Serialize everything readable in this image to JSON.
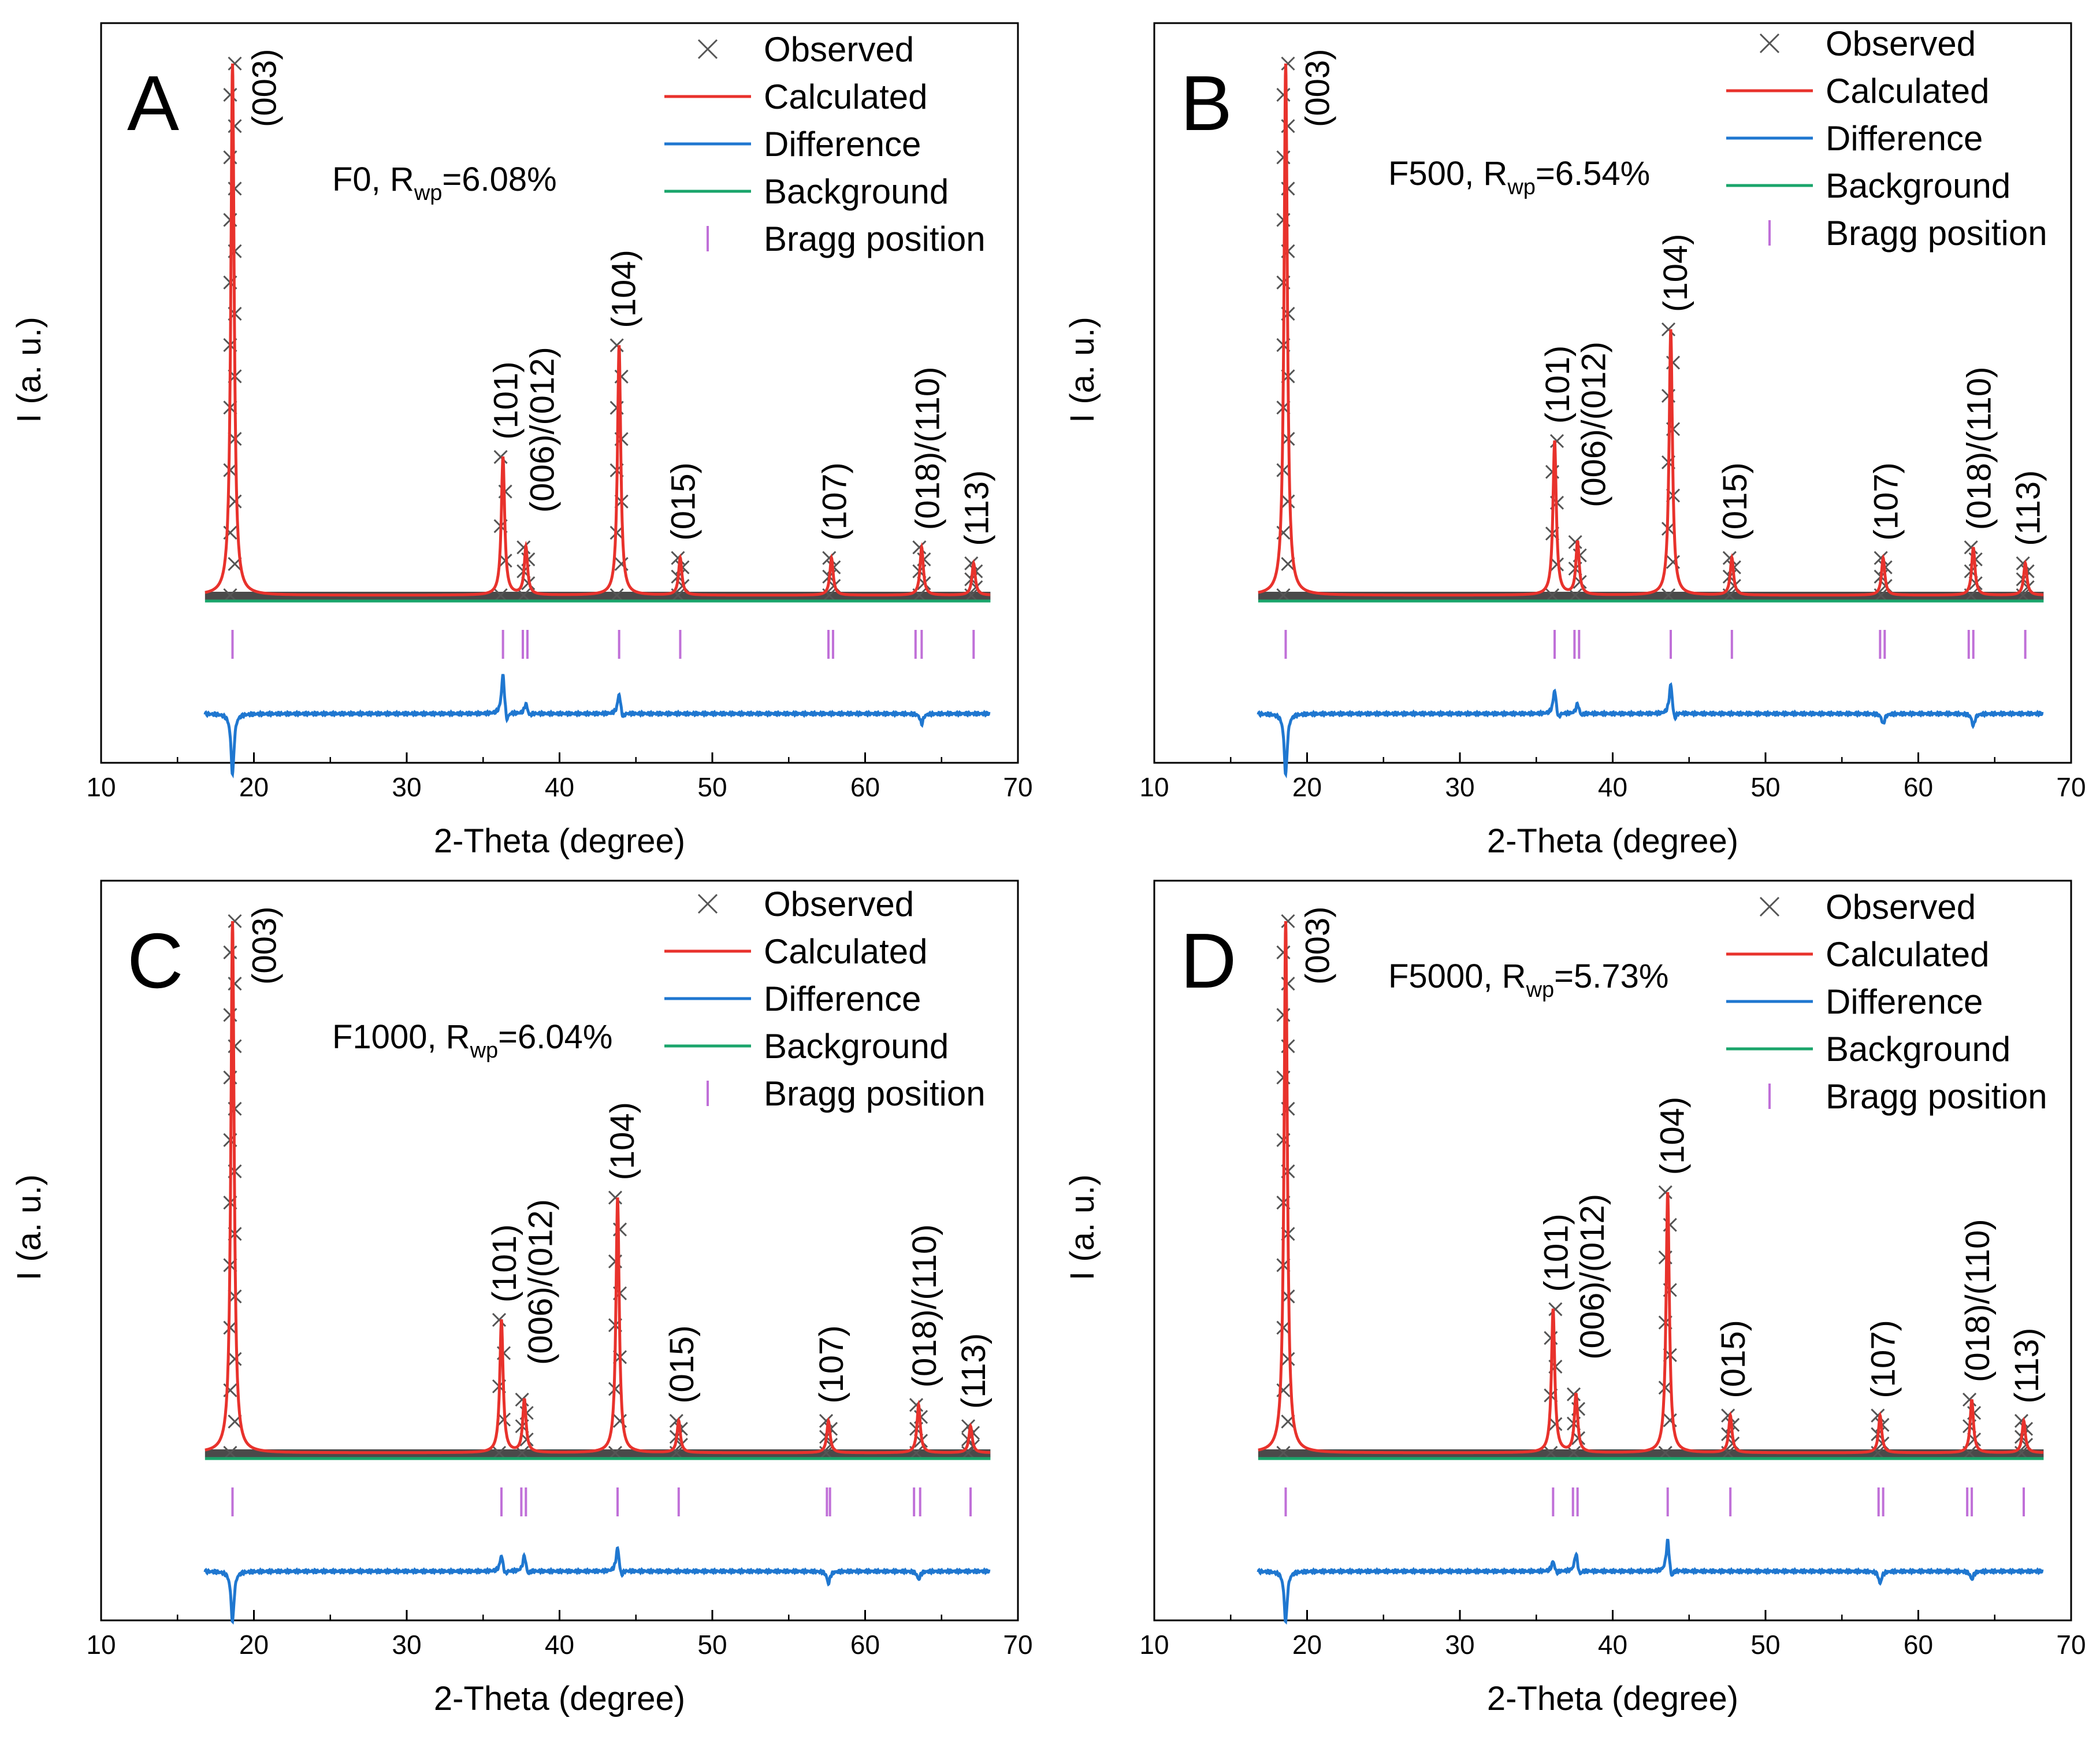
{
  "figure": {
    "x_axis_title": "2-Theta (degree)",
    "y_axis_title": "I (a. u.)",
    "legend": [
      {
        "key": "observed",
        "label": "Observed",
        "color": "#555555",
        "symbol": "x-mark"
      },
      {
        "key": "calculated",
        "label": "Calculated",
        "color": "#e8322c",
        "symbol": "line"
      },
      {
        "key": "difference",
        "label": "Difference",
        "color": "#1f77d0",
        "symbol": "line"
      },
      {
        "key": "background",
        "label": "Background",
        "color": "#1aa56b",
        "symbol": "line"
      },
      {
        "key": "bragg",
        "label": "Bragg position",
        "color": "#c070d8",
        "symbol": "vertical-tick"
      }
    ]
  },
  "chart_data": [
    {
      "type": "line",
      "panel": "A",
      "sample": "F0",
      "rwp_prefix": "F0, R",
      "rwp_sub": "wp",
      "rwp_value": "=6.08%",
      "xlim": [
        10,
        70
      ],
      "x_ticks": [
        "10",
        "20",
        "30",
        "40",
        "50",
        "60",
        "70"
      ],
      "xlabel": "2-Theta (degree)",
      "ylabel": "I (a. u.)",
      "peaks": [
        {
          "hkl": "(003)",
          "two_theta": 18.6,
          "intensity": 100
        },
        {
          "hkl": "(101)",
          "two_theta": 36.3,
          "intensity": 26
        },
        {
          "hkl": "(006)/(012)",
          "two_theta": 37.8,
          "intensity": 9
        },
        {
          "hkl": "(104)",
          "two_theta": 43.9,
          "intensity": 47
        },
        {
          "hkl": "(015)",
          "two_theta": 47.9,
          "intensity": 7
        },
        {
          "hkl": "(107)",
          "two_theta": 57.8,
          "intensity": 7
        },
        {
          "hkl": "(018)/(110)",
          "two_theta": 63.7,
          "intensity": 9
        },
        {
          "hkl": "(113)",
          "two_theta": 67.1,
          "intensity": 6
        }
      ],
      "bragg_positions": [
        18.6,
        36.3,
        37.6,
        37.9,
        43.9,
        47.9,
        57.6,
        57.9,
        63.3,
        63.7,
        67.1
      ],
      "difference": [
        {
          "two_theta": 18.6,
          "value": -3
        },
        {
          "two_theta": 36.3,
          "value": 2
        },
        {
          "two_theta": 37.8,
          "value": 0.5
        },
        {
          "two_theta": 43.9,
          "value": 1
        },
        {
          "two_theta": 63.7,
          "value": -0.5
        }
      ]
    },
    {
      "type": "line",
      "panel": "B",
      "sample": "F500",
      "rwp_prefix": "F500, R",
      "rwp_sub": "wp",
      "rwp_value": "=6.54%",
      "xlim": [
        10,
        70
      ],
      "x_ticks": [
        "10",
        "20",
        "30",
        "40",
        "50",
        "60",
        "70"
      ],
      "xlabel": "2-Theta (degree)",
      "ylabel": "I (a. u.)",
      "peaks": [
        {
          "hkl": "(003)",
          "two_theta": 18.6,
          "intensity": 100
        },
        {
          "hkl": "(101)",
          "two_theta": 36.2,
          "intensity": 29
        },
        {
          "hkl": "(006)/(012)",
          "two_theta": 37.7,
          "intensity": 10
        },
        {
          "hkl": "(104)",
          "two_theta": 43.8,
          "intensity": 50
        },
        {
          "hkl": "(015)",
          "two_theta": 47.8,
          "intensity": 7
        },
        {
          "hkl": "(107)",
          "two_theta": 57.7,
          "intensity": 7
        },
        {
          "hkl": "(018)/(110)",
          "two_theta": 63.6,
          "intensity": 9
        },
        {
          "hkl": "(113)",
          "two_theta": 67.0,
          "intensity": 6
        }
      ],
      "bragg_positions": [
        18.6,
        36.2,
        37.5,
        37.8,
        43.8,
        47.8,
        57.5,
        57.8,
        63.3,
        63.6,
        67.0
      ],
      "difference": [
        {
          "two_theta": 18.6,
          "value": -3
        },
        {
          "two_theta": 36.2,
          "value": 1.2
        },
        {
          "two_theta": 37.7,
          "value": 0.5
        },
        {
          "two_theta": 43.8,
          "value": 1.5
        },
        {
          "two_theta": 57.7,
          "value": -0.5
        },
        {
          "two_theta": 63.6,
          "value": -0.6
        }
      ]
    },
    {
      "type": "line",
      "panel": "C",
      "sample": "F1000",
      "rwp_prefix": "F1000, R",
      "rwp_sub": "wp",
      "rwp_value": "=6.04%",
      "xlim": [
        10,
        70
      ],
      "x_ticks": [
        "10",
        "20",
        "30",
        "40",
        "50",
        "60",
        "70"
      ],
      "xlabel": "2-Theta (degree)",
      "ylabel": "I (a. u.)",
      "peaks": [
        {
          "hkl": "(003)",
          "two_theta": 18.6,
          "intensity": 100
        },
        {
          "hkl": "(101)",
          "two_theta": 36.2,
          "intensity": 25
        },
        {
          "hkl": "(006)/(012)",
          "two_theta": 37.7,
          "intensity": 10
        },
        {
          "hkl": "(104)",
          "two_theta": 43.8,
          "intensity": 48
        },
        {
          "hkl": "(015)",
          "two_theta": 47.8,
          "intensity": 6
        },
        {
          "hkl": "(107)",
          "two_theta": 57.6,
          "intensity": 6
        },
        {
          "hkl": "(018)/(110)",
          "two_theta": 63.5,
          "intensity": 9
        },
        {
          "hkl": "(113)",
          "two_theta": 66.9,
          "intensity": 5
        }
      ],
      "bragg_positions": [
        18.6,
        36.2,
        37.5,
        37.8,
        43.8,
        47.8,
        57.5,
        57.7,
        63.2,
        63.6,
        66.9
      ],
      "difference": [
        {
          "two_theta": 18.6,
          "value": -2.5
        },
        {
          "two_theta": 36.2,
          "value": 0.8
        },
        {
          "two_theta": 37.7,
          "value": 0.8
        },
        {
          "two_theta": 43.8,
          "value": 1.2
        },
        {
          "two_theta": 57.6,
          "value": -0.6
        },
        {
          "two_theta": 63.5,
          "value": -0.4
        }
      ]
    },
    {
      "type": "line",
      "panel": "D",
      "sample": "F5000",
      "rwp_prefix": "F5000, R",
      "rwp_sub": "wp",
      "rwp_value": "=5.73%",
      "xlim": [
        10,
        70
      ],
      "x_ticks": [
        "10",
        "20",
        "30",
        "40",
        "50",
        "60",
        "70"
      ],
      "xlabel": "2-Theta (degree)",
      "ylabel": "I (a. u.)",
      "peaks": [
        {
          "hkl": "(003)",
          "two_theta": 18.6,
          "intensity": 100
        },
        {
          "hkl": "(101)",
          "two_theta": 36.1,
          "intensity": 27
        },
        {
          "hkl": "(006)/(012)",
          "two_theta": 37.6,
          "intensity": 11
        },
        {
          "hkl": "(104)",
          "two_theta": 43.6,
          "intensity": 49
        },
        {
          "hkl": "(015)",
          "two_theta": 47.7,
          "intensity": 7
        },
        {
          "hkl": "(107)",
          "two_theta": 57.5,
          "intensity": 7
        },
        {
          "hkl": "(018)/(110)",
          "two_theta": 63.5,
          "intensity": 10
        },
        {
          "hkl": "(113)",
          "two_theta": 66.9,
          "intensity": 6
        }
      ],
      "bragg_positions": [
        18.6,
        36.1,
        37.4,
        37.7,
        43.6,
        47.7,
        57.4,
        57.7,
        63.2,
        63.5,
        66.9
      ],
      "difference": [
        {
          "two_theta": 18.6,
          "value": -2.5
        },
        {
          "two_theta": 36.1,
          "value": 0.5
        },
        {
          "two_theta": 37.6,
          "value": 0.9
        },
        {
          "two_theta": 43.6,
          "value": 1.6
        },
        {
          "two_theta": 57.5,
          "value": -0.6
        },
        {
          "two_theta": 63.5,
          "value": -0.4
        }
      ]
    }
  ]
}
